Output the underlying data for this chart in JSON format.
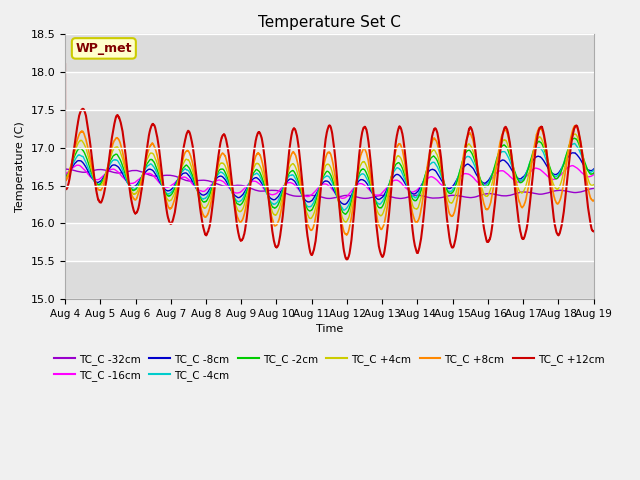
{
  "title": "Temperature Set C",
  "xlabel": "Time",
  "ylabel": "Temperature (C)",
  "ylim": [
    15.0,
    18.5
  ],
  "x_tick_labels": [
    "Aug 4",
    "Aug 5",
    "Aug 6",
    "Aug 7",
    "Aug 8",
    "Aug 9",
    "Aug 10",
    "Aug 11",
    "Aug 12",
    "Aug 13",
    "Aug 14",
    "Aug 15",
    "Aug 16",
    "Aug 17",
    "Aug 18",
    "Aug 19"
  ],
  "series": [
    {
      "label": "TC_C -32cm",
      "color": "#9900cc"
    },
    {
      "label": "TC_C -16cm",
      "color": "#ff00ff"
    },
    {
      "label": "TC_C -8cm",
      "color": "#0000cc"
    },
    {
      "label": "TC_C -4cm",
      "color": "#00cccc"
    },
    {
      "label": "TC_C -2cm",
      "color": "#00cc00"
    },
    {
      "label": "TC_C +4cm",
      "color": "#cccc00"
    },
    {
      "label": "TC_C +8cm",
      "color": "#ff8800"
    },
    {
      "label": "TC_C +12cm",
      "color": "#cc0000"
    }
  ],
  "wp_met_box_color": "#ffffcc",
  "wp_met_text_color": "#800000",
  "wp_met_border_color": "#cccc00",
  "fig_facecolor": "#f0f0f0",
  "ax_facecolor": "#e8e8e8",
  "band_color_light": "#dcdcdc",
  "band_color_dark": "#e8e8e8",
  "grid_color": "#ffffff"
}
